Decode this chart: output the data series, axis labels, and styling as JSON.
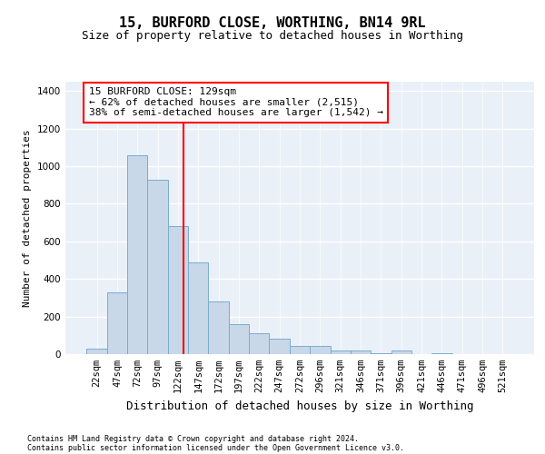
{
  "title": "15, BURFORD CLOSE, WORTHING, BN14 9RL",
  "subtitle": "Size of property relative to detached houses in Worthing",
  "xlabel": "Distribution of detached houses by size in Worthing",
  "ylabel": "Number of detached properties",
  "footnote1": "Contains HM Land Registry data © Crown copyright and database right 2024.",
  "footnote2": "Contains public sector information licensed under the Open Government Licence v3.0.",
  "bar_labels": [
    "22sqm",
    "47sqm",
    "72sqm",
    "97sqm",
    "122sqm",
    "147sqm",
    "172sqm",
    "197sqm",
    "222sqm",
    "247sqm",
    "272sqm",
    "296sqm",
    "321sqm",
    "346sqm",
    "371sqm",
    "396sqm",
    "421sqm",
    "446sqm",
    "471sqm",
    "496sqm",
    "521sqm"
  ],
  "bar_values": [
    30,
    330,
    1060,
    930,
    680,
    490,
    280,
    160,
    110,
    80,
    45,
    45,
    20,
    20,
    5,
    20,
    0,
    5,
    0,
    0,
    0
  ],
  "bar_color": "#c8d8e8",
  "bar_edgecolor": "#7aabcf",
  "annotation_line1": "15 BURFORD CLOSE: 129sqm",
  "annotation_line2": "← 62% of detached houses are smaller (2,515)",
  "annotation_line3": "38% of semi-detached houses are larger (1,542) →",
  "annotation_box_color": "red",
  "vline_x_index": 4.28,
  "vline_color": "red",
  "ylim": [
    0,
    1450
  ],
  "yticks": [
    0,
    200,
    400,
    600,
    800,
    1000,
    1200,
    1400
  ],
  "background_color": "#eaf0f8",
  "grid_color": "white",
  "title_fontsize": 11,
  "subtitle_fontsize": 9,
  "annotation_fontsize": 8,
  "ylabel_fontsize": 8,
  "xlabel_fontsize": 9,
  "tick_fontsize": 7.5,
  "footnote_fontsize": 6
}
